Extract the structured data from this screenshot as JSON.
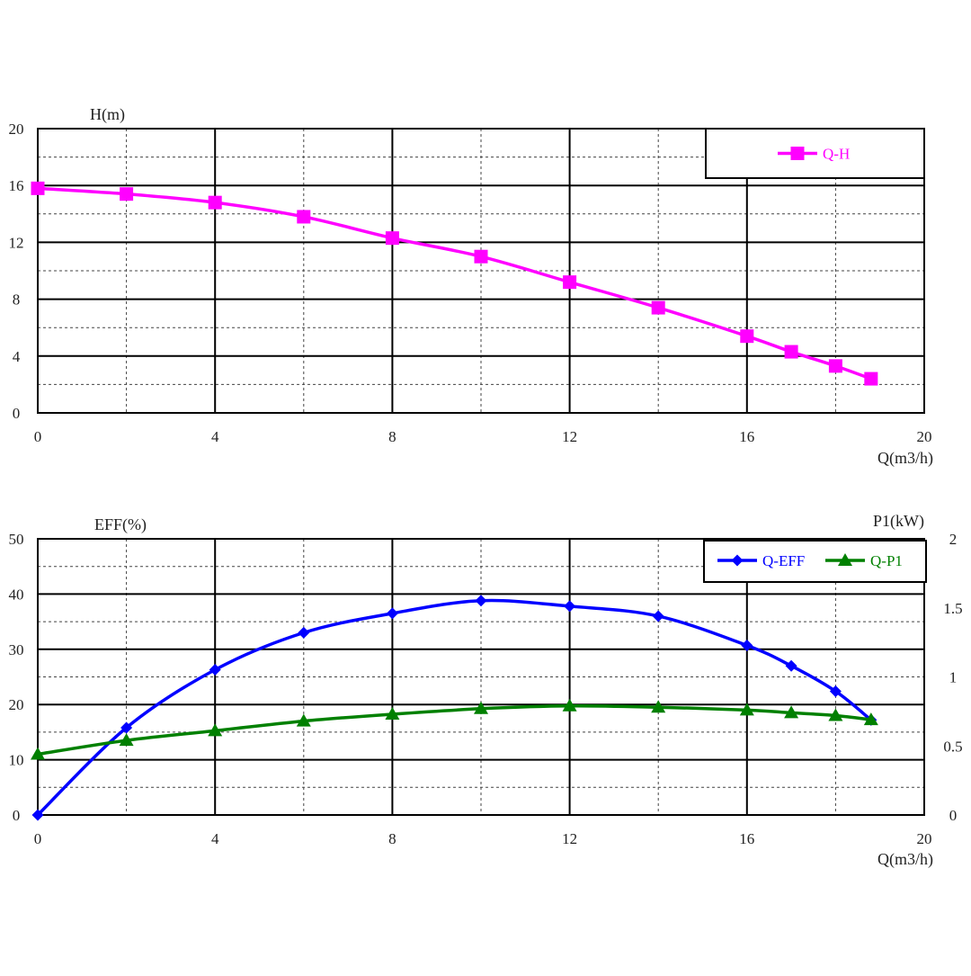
{
  "chart_data": [
    {
      "type": "line",
      "title": "",
      "xlabel": "Q(m3/h)",
      "ylabel": "H(m)",
      "xlim": [
        0,
        20
      ],
      "ylim": [
        0,
        20
      ],
      "x_ticks": [
        "0",
        "4",
        "8",
        "12",
        "16",
        "20"
      ],
      "y_ticks": [
        "0",
        "4",
        "8",
        "12",
        "16",
        "20"
      ],
      "grid": true,
      "legend_position": "top-right",
      "series": [
        {
          "name": "Q-H",
          "color": "#ff00ff",
          "marker": "square",
          "x": [
            0,
            2,
            4,
            6,
            8,
            10,
            12,
            14,
            16,
            17,
            18,
            18.8
          ],
          "y": [
            15.8,
            15.4,
            14.8,
            13.8,
            12.3,
            11.0,
            9.2,
            7.4,
            5.4,
            4.3,
            3.3,
            2.4
          ]
        }
      ]
    },
    {
      "type": "line",
      "title": "",
      "xlabel": "Q(m3/h)",
      "ylabel": "EFF(%)",
      "y2label": "P1(kW)",
      "xlim": [
        0,
        20
      ],
      "ylim": [
        0,
        50
      ],
      "y2lim": [
        0,
        2
      ],
      "x_ticks": [
        "0",
        "4",
        "8",
        "12",
        "16",
        "20"
      ],
      "y_ticks": [
        "0",
        "10",
        "20",
        "30",
        "40",
        "50"
      ],
      "y2_ticks": [
        "0",
        "0.5",
        "1",
        "1.5",
        "2"
      ],
      "grid": true,
      "legend_position": "top-right",
      "series": [
        {
          "name": "Q-EFF",
          "axis": "left",
          "color": "#0000ff",
          "marker": "diamond",
          "x": [
            0,
            2,
            4,
            6,
            8,
            10,
            12,
            14,
            16,
            17,
            18,
            18.8
          ],
          "y": [
            0,
            15.8,
            26.3,
            33.0,
            36.5,
            38.8,
            37.8,
            36.0,
            30.7,
            27.0,
            22.4,
            17.2
          ]
        },
        {
          "name": "Q-P1",
          "axis": "right",
          "color": "#008000",
          "marker": "triangle",
          "x": [
            0,
            2,
            4,
            6,
            8,
            10,
            12,
            14,
            16,
            17,
            18,
            18.8
          ],
          "y": [
            0.44,
            0.54,
            0.61,
            0.68,
            0.73,
            0.77,
            0.79,
            0.78,
            0.76,
            0.74,
            0.72,
            0.69
          ]
        }
      ]
    }
  ]
}
